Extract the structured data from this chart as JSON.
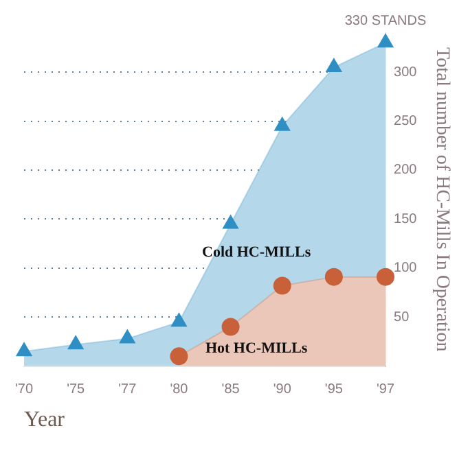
{
  "chart_data": {
    "type": "area",
    "xlabel": "Year",
    "ylabel": "Total number of HC-Mills In Operation",
    "categories": [
      "'70",
      "'75",
      "'77",
      "'80",
      "'85",
      "'90",
      "'95",
      "'97"
    ],
    "series": [
      {
        "name": "Cold HC-MILLs",
        "color": "#2f8fc4",
        "marker": "triangle",
        "values": [
          15,
          22,
          28,
          45,
          145,
          245,
          305,
          330
        ]
      },
      {
        "name": "Hot HC-MILLs",
        "color": "#c8603a",
        "marker": "circle",
        "values": [
          null,
          null,
          null,
          10,
          40,
          82,
          91,
          91
        ]
      }
    ],
    "ylim": [
      0,
      340
    ],
    "yticks": [
      50,
      100,
      150,
      200,
      250,
      300
    ],
    "grid": "y",
    "legend": false,
    "annotations": [
      {
        "text": "330 STANDS",
        "x": "'97",
        "y": 330
      }
    ]
  }
}
